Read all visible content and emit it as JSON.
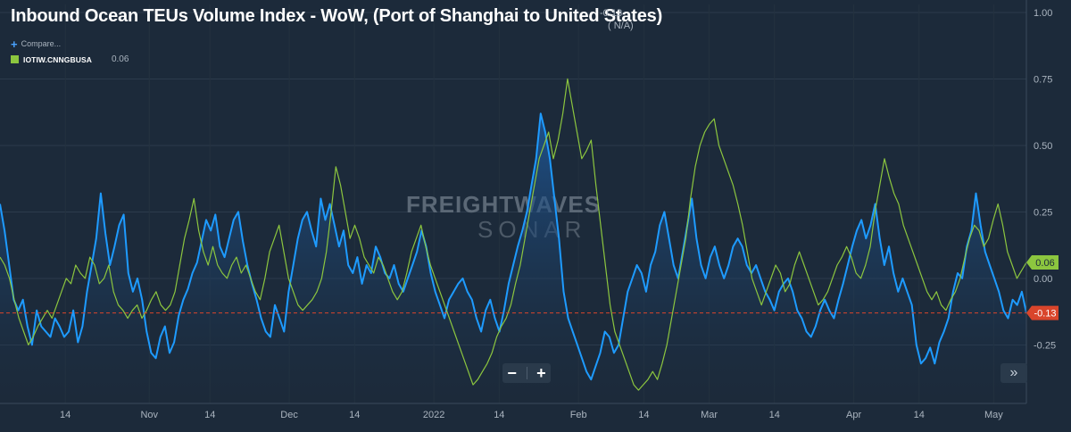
{
  "title": "Inbound Ocean TEUs Volume Index - WoW, (Port of Shanghai to United States)",
  "title_value": "-0.13",
  "title_sub": "( N/A)",
  "compare_label": "Compare...",
  "zoom": {
    "minus": "−",
    "plus": "+"
  },
  "forward_label": "»",
  "watermark": {
    "line1": "FREIGHTWAVES",
    "line2": "SONAR"
  },
  "colors": {
    "background": "#1c2a3a",
    "primary": "#1e9bff",
    "secondary": "#8cc63f",
    "ref_line": "#d9452b"
  },
  "chart_data": {
    "type": "line",
    "y_ticks": [
      "1.00",
      "0.75",
      "0.50",
      "0.25",
      "0.00",
      "-0.25"
    ],
    "ylim": [
      -0.47,
      1.03
    ],
    "x_ticks": [
      "14",
      "Nov",
      "14",
      "Dec",
      "14",
      "2022",
      "14",
      "Feb",
      "14",
      "Mar",
      "14",
      "Apr",
      "14",
      "May"
    ],
    "x_tick_days": [
      14,
      32,
      45,
      62,
      76,
      93,
      107,
      124,
      138,
      152,
      166,
      183,
      197,
      213
    ],
    "x_range_days": [
      0,
      220
    ],
    "grid": true,
    "reference_line": {
      "value": -0.13,
      "label": "-0.13",
      "color": "#d9452b",
      "style": "dashed"
    },
    "series": [
      {
        "name": "",
        "color": "#1e9bff",
        "filled": true,
        "last_label": "-0.13",
        "values": [
          0.28,
          0.18,
          0.05,
          -0.08,
          -0.12,
          -0.08,
          -0.18,
          -0.25,
          -0.12,
          -0.18,
          -0.2,
          -0.22,
          -0.15,
          -0.18,
          -0.22,
          -0.2,
          -0.12,
          -0.24,
          -0.18,
          -0.05,
          0.05,
          0.15,
          0.32,
          0.17,
          0.05,
          0.12,
          0.2,
          0.24,
          0.02,
          -0.05,
          0.0,
          -0.08,
          -0.2,
          -0.28,
          -0.3,
          -0.22,
          -0.18,
          -0.28,
          -0.24,
          -0.14,
          -0.08,
          -0.04,
          0.02,
          0.06,
          0.14,
          0.22,
          0.18,
          0.24,
          0.12,
          0.08,
          0.15,
          0.22,
          0.25,
          0.14,
          0.05,
          -0.02,
          -0.08,
          -0.15,
          -0.2,
          -0.22,
          -0.1,
          -0.15,
          -0.2,
          -0.05,
          0.05,
          0.15,
          0.22,
          0.25,
          0.18,
          0.12,
          0.3,
          0.22,
          0.28,
          0.2,
          0.12,
          0.18,
          0.05,
          0.02,
          0.08,
          -0.02,
          0.05,
          0.02,
          0.12,
          0.08,
          0.02,
          0.0,
          0.05,
          -0.02,
          -0.05,
          0.0,
          0.05,
          0.1,
          0.18,
          0.12,
          0.02,
          -0.05,
          -0.1,
          -0.15,
          -0.08,
          -0.05,
          -0.02,
          0.0,
          -0.05,
          -0.08,
          -0.15,
          -0.2,
          -0.12,
          -0.08,
          -0.15,
          -0.2,
          -0.12,
          -0.02,
          0.05,
          0.12,
          0.18,
          0.25,
          0.35,
          0.45,
          0.62,
          0.55,
          0.45,
          0.3,
          0.15,
          -0.05,
          -0.15,
          -0.2,
          -0.25,
          -0.3,
          -0.35,
          -0.38,
          -0.33,
          -0.28,
          -0.2,
          -0.22,
          -0.28,
          -0.25,
          -0.15,
          -0.05,
          0.0,
          0.05,
          0.02,
          -0.05,
          0.05,
          0.1,
          0.2,
          0.25,
          0.15,
          0.05,
          0.0,
          0.1,
          0.2,
          0.3,
          0.15,
          0.05,
          0.0,
          0.08,
          0.12,
          0.05,
          0.0,
          0.05,
          0.12,
          0.15,
          0.12,
          0.05,
          0.02,
          0.05,
          0.0,
          -0.05,
          -0.08,
          -0.12,
          -0.05,
          -0.02,
          0.0,
          -0.05,
          -0.12,
          -0.15,
          -0.2,
          -0.22,
          -0.18,
          -0.12,
          -0.08,
          -0.12,
          -0.15,
          -0.08,
          -0.02,
          0.05,
          0.12,
          0.18,
          0.22,
          0.15,
          0.2,
          0.28,
          0.15,
          0.05,
          0.12,
          0.02,
          -0.05,
          0.0,
          -0.05,
          -0.1,
          -0.25,
          -0.32,
          -0.3,
          -0.26,
          -0.32,
          -0.24,
          -0.2,
          -0.15,
          -0.05,
          0.02,
          0.0,
          0.12,
          0.18,
          0.32,
          0.2,
          0.1,
          0.05,
          0.0,
          -0.05,
          -0.12,
          -0.15,
          -0.08,
          -0.1,
          -0.05,
          -0.13
        ]
      },
      {
        "name": "IOTIW.CNNGBUSA",
        "color": "#8cc63f",
        "filled": false,
        "last_label": "0.06",
        "legend_value": "0.06",
        "values": [
          0.08,
          0.05,
          0.0,
          -0.08,
          -0.15,
          -0.2,
          -0.25,
          -0.22,
          -0.18,
          -0.15,
          -0.12,
          -0.15,
          -0.1,
          -0.05,
          0.0,
          -0.02,
          0.05,
          0.02,
          0.0,
          0.08,
          0.05,
          -0.02,
          0.0,
          0.05,
          -0.05,
          -0.1,
          -0.12,
          -0.15,
          -0.12,
          -0.1,
          -0.15,
          -0.12,
          -0.08,
          -0.05,
          -0.1,
          -0.12,
          -0.1,
          -0.05,
          0.05,
          0.15,
          0.22,
          0.3,
          0.18,
          0.1,
          0.05,
          0.12,
          0.05,
          0.02,
          0.0,
          0.05,
          0.08,
          0.02,
          0.05,
          0.0,
          -0.05,
          -0.08,
          0.0,
          0.1,
          0.15,
          0.2,
          0.1,
          0.0,
          -0.05,
          -0.1,
          -0.12,
          -0.1,
          -0.08,
          -0.05,
          0.0,
          0.1,
          0.25,
          0.42,
          0.35,
          0.25,
          0.15,
          0.2,
          0.15,
          0.08,
          0.05,
          0.02,
          0.08,
          0.05,
          0.0,
          -0.05,
          -0.08,
          -0.05,
          0.02,
          0.1,
          0.15,
          0.2,
          0.12,
          0.05,
          0.0,
          -0.05,
          -0.1,
          -0.15,
          -0.2,
          -0.25,
          -0.3,
          -0.35,
          -0.4,
          -0.38,
          -0.35,
          -0.32,
          -0.28,
          -0.22,
          -0.18,
          -0.15,
          -0.1,
          -0.02,
          0.05,
          0.15,
          0.25,
          0.35,
          0.45,
          0.5,
          0.55,
          0.45,
          0.52,
          0.62,
          0.75,
          0.65,
          0.55,
          0.45,
          0.48,
          0.52,
          0.35,
          0.2,
          0.05,
          -0.1,
          -0.2,
          -0.25,
          -0.3,
          -0.35,
          -0.4,
          -0.42,
          -0.4,
          -0.38,
          -0.35,
          -0.38,
          -0.32,
          -0.25,
          -0.15,
          -0.05,
          0.05,
          0.15,
          0.3,
          0.42,
          0.5,
          0.55,
          0.58,
          0.6,
          0.5,
          0.45,
          0.4,
          0.35,
          0.28,
          0.2,
          0.1,
          0.0,
          -0.05,
          -0.1,
          -0.05,
          0.0,
          0.05,
          0.02,
          -0.05,
          -0.02,
          0.05,
          0.1,
          0.05,
          0.0,
          -0.05,
          -0.1,
          -0.08,
          -0.05,
          0.0,
          0.05,
          0.08,
          0.12,
          0.08,
          0.02,
          0.0,
          0.05,
          0.12,
          0.25,
          0.35,
          0.45,
          0.38,
          0.32,
          0.28,
          0.2,
          0.15,
          0.1,
          0.05,
          0.0,
          -0.05,
          -0.08,
          -0.05,
          -0.1,
          -0.12,
          -0.08,
          -0.05,
          0.0,
          0.08,
          0.15,
          0.2,
          0.18,
          0.12,
          0.15,
          0.22,
          0.28,
          0.2,
          0.1,
          0.05,
          0.0,
          0.03,
          0.06
        ]
      }
    ]
  }
}
